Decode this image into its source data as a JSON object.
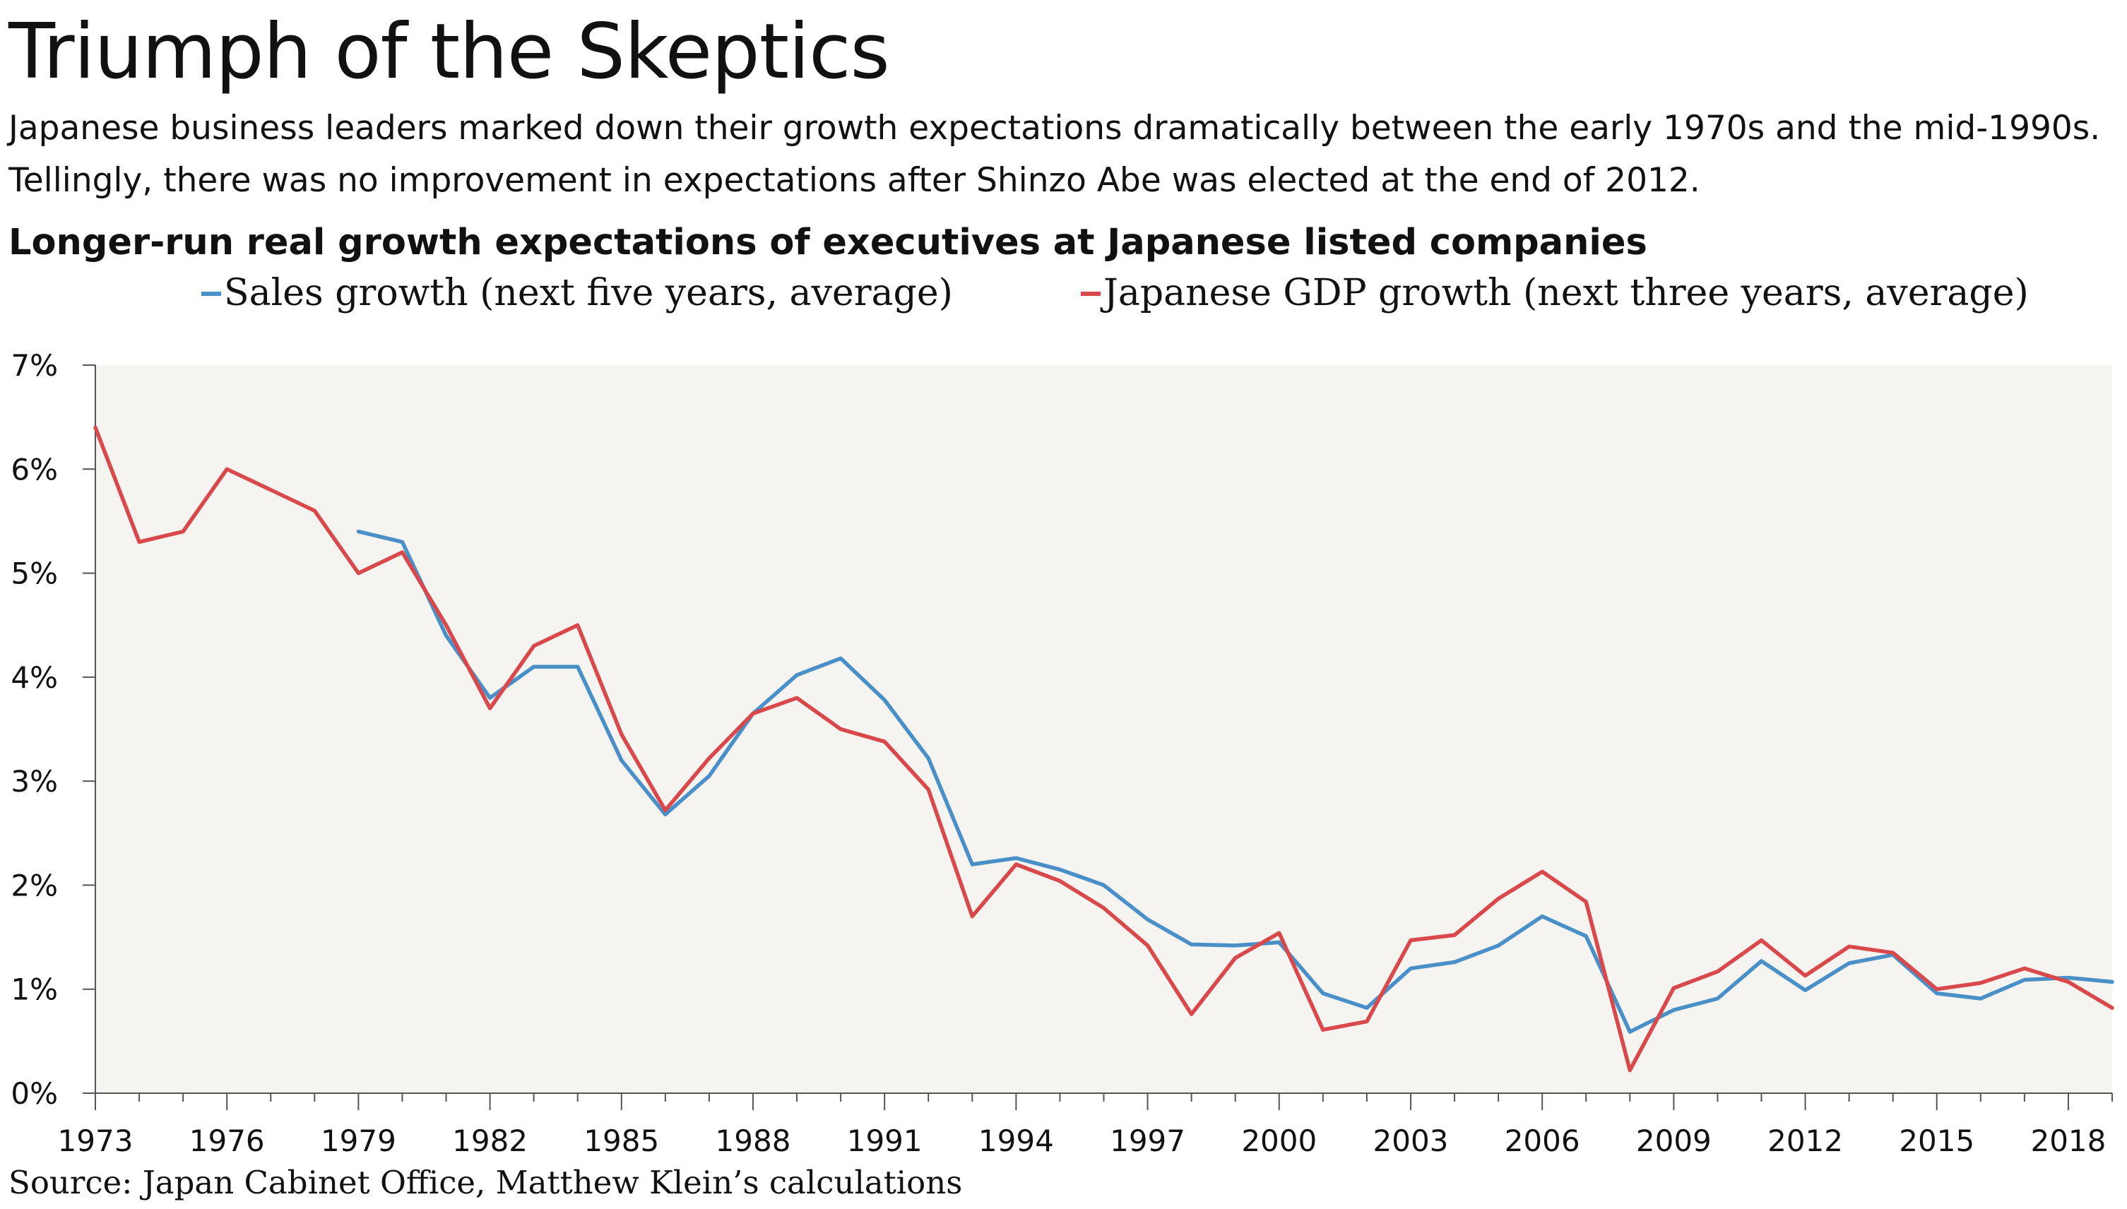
{
  "title": "Triumph of the Skeptics",
  "subtitle_line1": "Japanese business leaders marked down their growth expectations dramatically between the early 1970s and the mid-1990s.",
  "subtitle_line2": "Tellingly, there was no improvement in expectations after Shinzo Abe was elected at the end of 2012.",
  "source": "Source: Japan Cabinet Office, Matthew Klein’s calculations",
  "chart_data": {
    "type": "line",
    "title": "Longer-run real growth expectations of executives at Japanese listed companies",
    "xlabel": "",
    "ylabel": "",
    "xlim": [
      1973,
      2019
    ],
    "ylim": [
      0,
      7
    ],
    "x_ticks": [
      "1973",
      "1976",
      "1979",
      "1982",
      "1985",
      "1988",
      "1991",
      "1994",
      "1997",
      "2000",
      "2003",
      "2006",
      "2009",
      "2012",
      "2015",
      "2018"
    ],
    "y_ticks": [
      "0%",
      "1%",
      "2%",
      "3%",
      "4%",
      "5%",
      "6%",
      "7%"
    ],
    "grid": false,
    "legend_position": "top",
    "background": "#f6f4f0",
    "series": [
      {
        "name": "Sales growth (next five years, average)",
        "color": "#4a90c8",
        "x": [
          1979,
          1980,
          1981,
          1982,
          1983,
          1984,
          1985,
          1986,
          1987,
          1988,
          1989,
          1990,
          1991,
          1992,
          1993,
          1994,
          1995,
          1996,
          1997,
          1998,
          1999,
          2000,
          2001,
          2002,
          2003,
          2004,
          2005,
          2006,
          2007,
          2008,
          2009,
          2010,
          2011,
          2012,
          2013,
          2014,
          2015,
          2016,
          2017,
          2018,
          2019
        ],
        "values": [
          5.4,
          5.3,
          4.4,
          3.8,
          4.1,
          4.1,
          3.2,
          2.68,
          3.05,
          3.65,
          4.02,
          4.18,
          3.78,
          3.22,
          2.2,
          2.26,
          2.15,
          2.0,
          1.67,
          1.43,
          1.42,
          1.45,
          0.96,
          0.82,
          1.2,
          1.26,
          1.42,
          1.7,
          1.51,
          0.59,
          0.8,
          0.91,
          1.27,
          0.99,
          1.25,
          1.33,
          0.96,
          0.91,
          1.09,
          1.11,
          1.07
        ]
      },
      {
        "name": "Japanese GDP growth (next three years, average)",
        "color": "#d9484a",
        "x": [
          1973,
          1974,
          1975,
          1976,
          1977,
          1978,
          1979,
          1980,
          1981,
          1982,
          1983,
          1984,
          1985,
          1986,
          1987,
          1988,
          1989,
          1990,
          1991,
          1992,
          1993,
          1994,
          1995,
          1996,
          1997,
          1998,
          1999,
          2000,
          2001,
          2002,
          2003,
          2004,
          2005,
          2006,
          2007,
          2008,
          2009,
          2010,
          2011,
          2012,
          2013,
          2014,
          2015,
          2016,
          2017,
          2018,
          2019
        ],
        "values": [
          6.4,
          5.3,
          5.4,
          6.0,
          5.8,
          5.6,
          5.0,
          5.2,
          4.5,
          3.7,
          4.3,
          4.5,
          3.45,
          2.72,
          3.22,
          3.65,
          3.8,
          3.5,
          3.38,
          2.92,
          1.7,
          2.2,
          2.04,
          1.78,
          1.42,
          0.76,
          1.3,
          1.54,
          0.61,
          0.69,
          1.47,
          1.52,
          1.87,
          2.13,
          1.84,
          0.22,
          1.01,
          1.17,
          1.47,
          1.13,
          1.41,
          1.35,
          1.0,
          1.06,
          1.2,
          1.07,
          0.82
        ]
      }
    ]
  }
}
